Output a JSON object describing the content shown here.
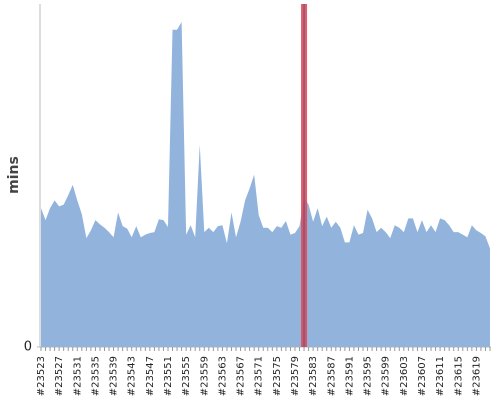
{
  "chart_data": {
    "type": "area",
    "y_label": "mins",
    "categories": [
      "#23523",
      null,
      null,
      null,
      "#23527",
      null,
      null,
      null,
      "#23531",
      null,
      null,
      null,
      "#23535",
      null,
      null,
      null,
      "#23539",
      null,
      null,
      null,
      "#23543",
      null,
      null,
      null,
      "#23547",
      null,
      null,
      null,
      "#23551",
      null,
      null,
      null,
      "#23555",
      null,
      null,
      null,
      "#23559",
      null,
      null,
      null,
      "#23563",
      null,
      null,
      null,
      "#23567",
      null,
      null,
      null,
      "#23571",
      null,
      null,
      null,
      "#23575",
      null,
      null,
      null,
      "#23579",
      null,
      null,
      null,
      "#23583",
      null,
      null,
      null,
      "#23587",
      null,
      null,
      null,
      "#23591",
      null,
      null,
      null,
      "#23595",
      null,
      null,
      null,
      "#23599",
      null,
      null,
      null,
      "#23603",
      null,
      null,
      null,
      "#23607",
      null,
      null,
      null,
      "#23611",
      null,
      null,
      null,
      "#23615",
      null,
      null,
      null,
      "#23619",
      null,
      null,
      null
    ],
    "values": [
      16.2,
      14.8,
      16.2,
      17.1,
      16.4,
      16.6,
      17.7,
      18.9,
      17.1,
      15.5,
      12.7,
      13.6,
      14.8,
      14.3,
      13.9,
      13.4,
      12.8,
      15.7,
      14.1,
      13.8,
      12.8,
      14.1,
      12.8,
      13.1,
      13.3,
      13.4,
      14.9,
      14.8,
      14.0,
      37.0,
      37.0,
      37.9,
      13.1,
      14.2,
      12.8,
      23.6,
      13.4,
      13.9,
      13.4,
      14.1,
      14.2,
      12.1,
      15.7,
      12.8,
      14.6,
      17.1,
      18.5,
      20.1,
      15.4,
      13.9,
      13.9,
      13.4,
      14.1,
      13.9,
      14.7,
      13.1,
      13.3,
      14.1,
      17.4,
      16.6,
      14.6,
      16.2,
      14.1,
      15.2,
      13.9,
      14.6,
      13.9,
      12.2,
      12.2,
      14.2,
      13.1,
      13.3,
      16.0,
      15.0,
      13.4,
      13.9,
      13.4,
      12.7,
      14.2,
      13.9,
      13.4,
      15.0,
      15.0,
      13.4,
      14.8,
      13.4,
      14.2,
      13.4,
      15.0,
      14.8,
      14.2,
      13.4,
      13.4,
      13.1,
      12.8,
      14.2,
      13.6,
      13.3,
      12.9,
      11.5
    ],
    "color": "#92b4dc",
    "ylim": [
      0,
      40
    ],
    "yticks": [
      0
    ],
    "highlight": {
      "index": 58,
      "color": "#e8494f"
    }
  }
}
